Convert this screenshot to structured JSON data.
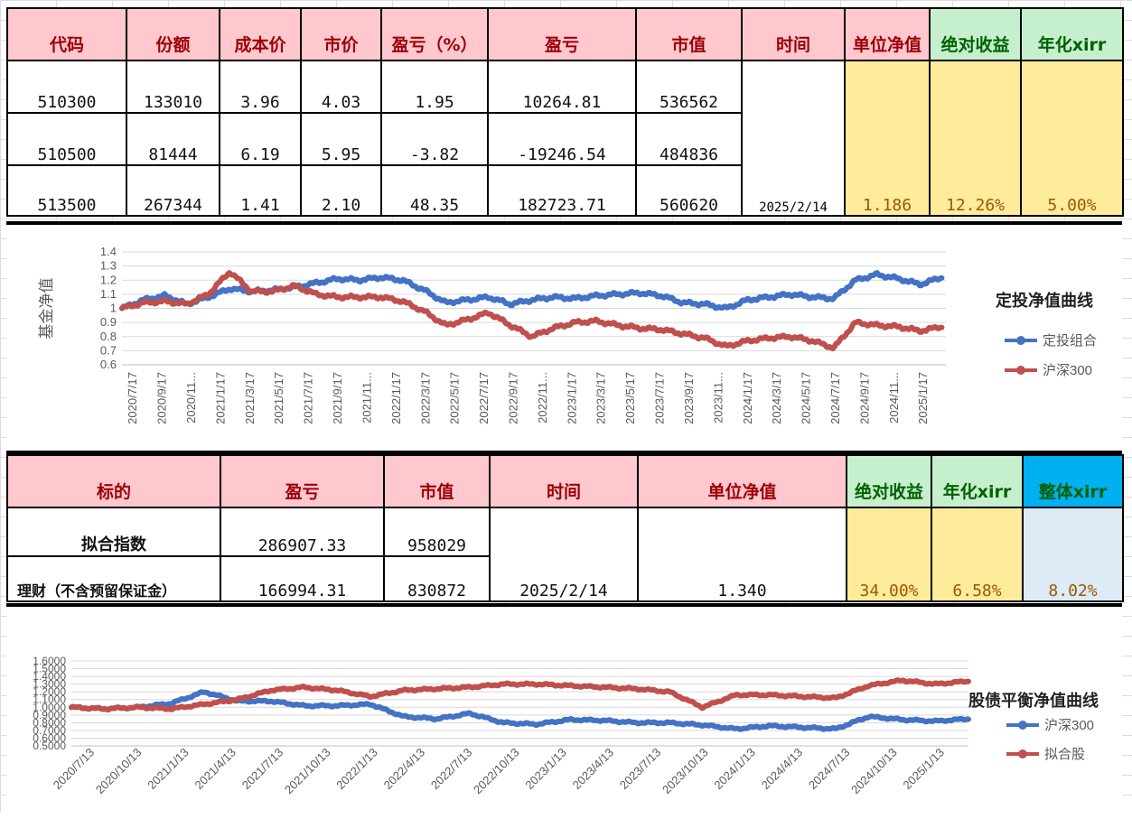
{
  "table1": {
    "headers": [
      "代码",
      "份额",
      "成本价",
      "市价",
      "盈亏（%）",
      "盈亏",
      "市值",
      "时间",
      "单位净值",
      "绝对收益",
      "年化xirr"
    ],
    "rows": [
      [
        "510300",
        "133010",
        "3.96",
        "4.03",
        "1.95",
        "10264.81",
        "536562"
      ],
      [
        "510500",
        "81444",
        "6.19",
        "5.95",
        "-3.82",
        "-19246.54",
        "484836"
      ],
      [
        "513500",
        "267344",
        "1.41",
        "2.10",
        "48.35",
        "182723.71",
        "560620"
      ]
    ],
    "time": "2025/2/14",
    "unit_nav": "1.186",
    "abs_return": "12.26%",
    "xirr": "5.00%"
  },
  "table2": {
    "headers": [
      "标的",
      "盈亏",
      "市值",
      "时间",
      "单位净值",
      "绝对收益",
      "年化xirr",
      "整体xirr"
    ],
    "rows": [
      [
        "拟合指数",
        "286907.33",
        "958029"
      ],
      [
        "理财（不含预留保证金）",
        "166994.31",
        "830872"
      ]
    ],
    "time": "2025/2/14",
    "unit_nav": "1.340",
    "abs_return": "34.00%",
    "xirr": "6.58%",
    "overall_xirr": "8.02%"
  },
  "chart_data": [
    {
      "type": "line",
      "title": "定投净值曲线",
      "ylabel": "基金净值",
      "xlabel": "",
      "ylim": [
        0.6,
        1.4
      ],
      "yticks": [
        "0.6",
        "0.7",
        "0.8",
        "0.9",
        "1",
        "1.1",
        "1.2",
        "1.3",
        "1.4"
      ],
      "x_tick_labels": [
        "2020/7/17",
        "2020/9/17",
        "2020/11...",
        "2021/1/17",
        "2021/3/17",
        "2021/5/17",
        "2021/7/17",
        "2021/9/17",
        "2021/11...",
        "2022/1/17",
        "2022/3/17",
        "2022/5/17",
        "2022/7/17",
        "2022/9/17",
        "2022/11...",
        "2023/1/17",
        "2023/3/17",
        "2023/5/17",
        "2023/7/17",
        "2023/9/17",
        "2023/11...",
        "2024/1/17",
        "2024/3/17",
        "2024/5/17",
        "2024/7/17",
        "2024/9/17",
        "2024/11...",
        "2025/1/17"
      ],
      "grid": true,
      "legend_position": "right",
      "series": [
        {
          "name": "定投组合",
          "color": "#4472c4",
          "values": [
            1.0,
            1.06,
            1.09,
            1.03,
            1.08,
            1.14,
            1.12,
            1.13,
            1.15,
            1.18,
            1.21,
            1.2,
            1.22,
            1.2,
            1.13,
            1.04,
            1.06,
            1.08,
            1.03,
            1.06,
            1.08,
            1.07,
            1.09,
            1.1,
            1.11,
            1.09,
            1.04,
            1.03,
            1.0,
            1.06,
            1.08,
            1.1,
            1.08,
            1.07,
            1.2,
            1.24,
            1.21,
            1.17,
            1.22
          ]
        },
        {
          "name": "沪深300",
          "color": "#c0504d",
          "values": [
            1.0,
            1.04,
            1.05,
            1.03,
            1.1,
            1.26,
            1.12,
            1.12,
            1.16,
            1.1,
            1.08,
            1.08,
            1.08,
            1.05,
            0.98,
            0.88,
            0.92,
            0.97,
            0.88,
            0.8,
            0.86,
            0.9,
            0.91,
            0.88,
            0.86,
            0.85,
            0.82,
            0.79,
            0.73,
            0.77,
            0.79,
            0.8,
            0.77,
            0.72,
            0.9,
            0.88,
            0.87,
            0.84,
            0.87
          ]
        }
      ]
    },
    {
      "type": "line",
      "title": "股债平衡净值曲线",
      "ylabel": "",
      "xlabel": "",
      "ylim": [
        0.5,
        1.6
      ],
      "yticks": [
        "0.5000",
        "0.6000",
        "0.7000",
        "0.8000",
        "0.9000",
        "1.0000",
        "1.1000",
        "1.2000",
        "1.3000",
        "1.4000",
        "1.5000",
        "1.6000"
      ],
      "x_tick_labels": [
        "2020/7/13",
        "2020/10/13",
        "2021/1/13",
        "2021/4/13",
        "2021/7/13",
        "2021/10/13",
        "2022/1/13",
        "2022/4/13",
        "2022/7/13",
        "2022/10/13",
        "2023/1/13",
        "2023/4/13",
        "2023/7/13",
        "2023/10/13",
        "2024/1/13",
        "2024/4/13",
        "2024/7/13",
        "2024/10/13",
        "2025/1/13"
      ],
      "grid": true,
      "legend_position": "right",
      "series": [
        {
          "name": "沪深300",
          "color": "#4472c4",
          "values": [
            1.0,
            0.98,
            1.0,
            1.05,
            1.2,
            1.08,
            1.08,
            1.02,
            1.02,
            1.04,
            0.88,
            0.85,
            0.92,
            0.8,
            0.78,
            0.84,
            0.83,
            0.8,
            0.8,
            0.77,
            0.72,
            0.76,
            0.74,
            0.72,
            0.88,
            0.84,
            0.82,
            0.85
          ]
        },
        {
          "name": "拟合股",
          "color": "#c0504d",
          "values": [
            1.0,
            0.98,
            1.0,
            0.98,
            1.04,
            1.1,
            1.22,
            1.26,
            1.22,
            1.14,
            1.22,
            1.24,
            1.26,
            1.3,
            1.3,
            1.28,
            1.26,
            1.24,
            1.2,
            1.0,
            1.16,
            1.16,
            1.14,
            1.12,
            1.28,
            1.35,
            1.3,
            1.34
          ]
        }
      ]
    }
  ]
}
